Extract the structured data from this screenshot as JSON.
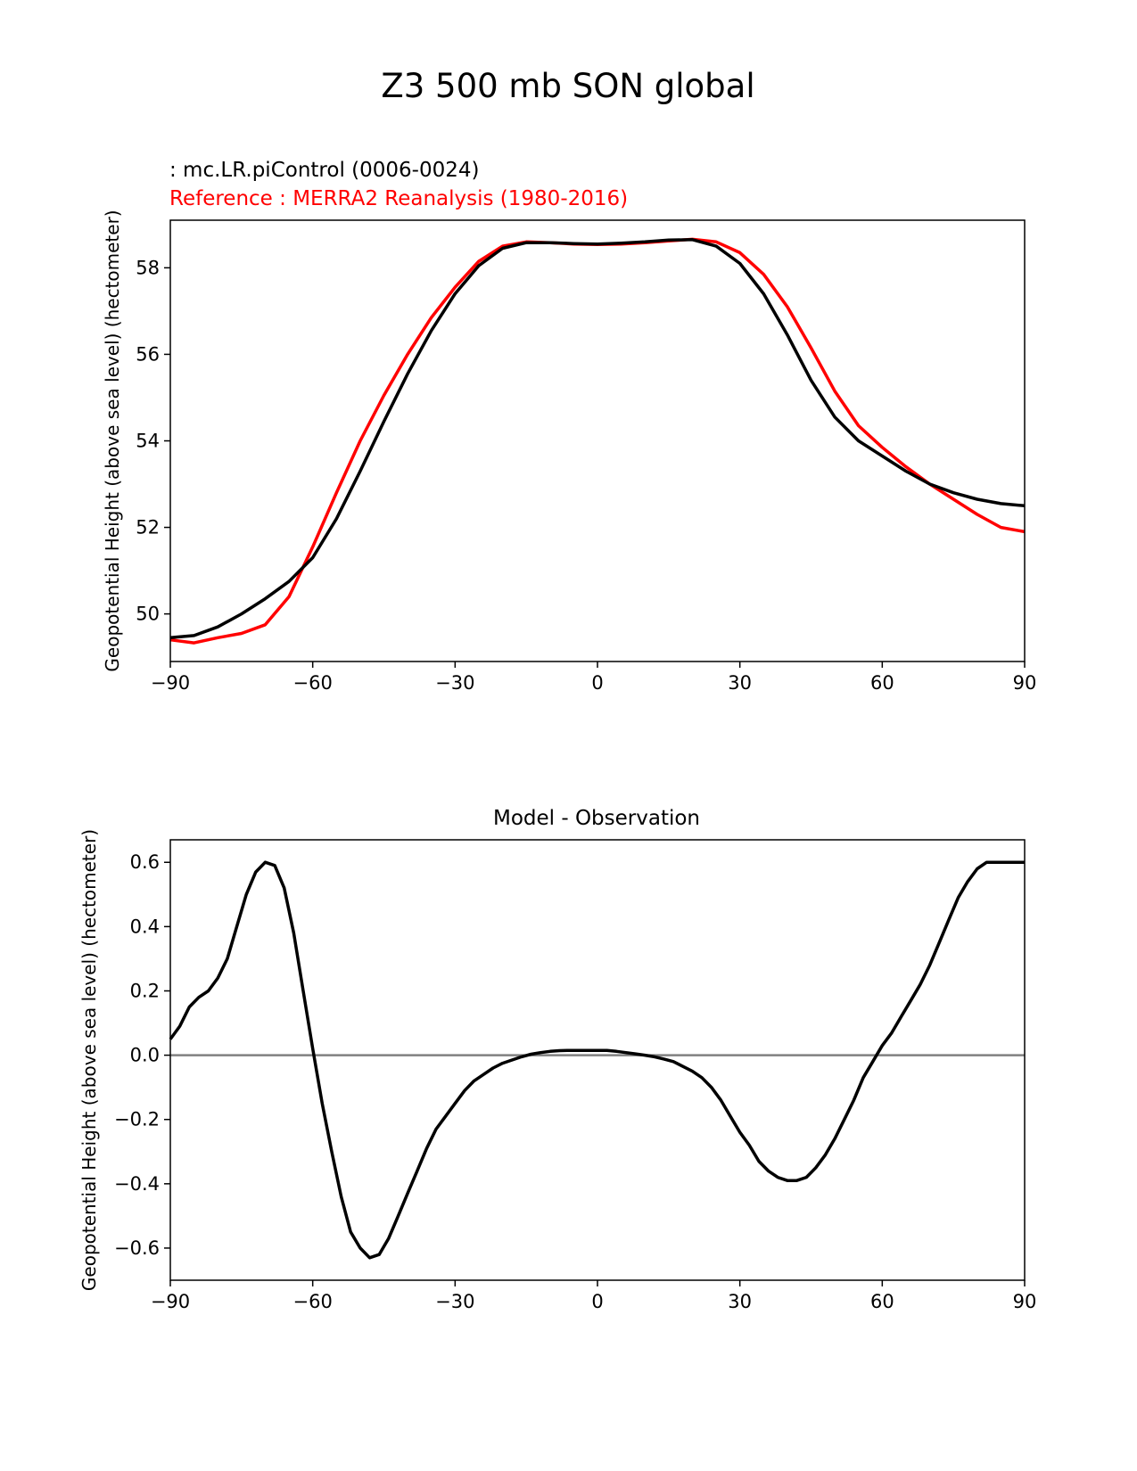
{
  "figure": {
    "title": "Z3 500 mb SON global"
  },
  "chart_data": [
    {
      "type": "line",
      "title": "",
      "legend_test": " : mc.LR.piControl (0006-0024)",
      "legend_ref": "Reference : MERRA2 Reanalysis (1980-2016)",
      "xlabel": "",
      "ylabel": "Geopotential Height (above sea level) (hectometer)",
      "xlim": [
        -90,
        90
      ],
      "ylim": [
        48.9,
        59.1
      ],
      "xticks": [
        -90,
        -60,
        -30,
        0,
        30,
        60,
        90
      ],
      "xtick_labels": [
        "−90",
        "−60",
        "−30",
        "0",
        "30",
        "60",
        "90"
      ],
      "yticks": [
        50,
        52,
        54,
        56,
        58
      ],
      "ytick_labels": [
        "50",
        "52",
        "54",
        "56",
        "58"
      ],
      "grid": false,
      "colors": {
        "test": "#000000",
        "reference": "#ff0000"
      },
      "series": [
        {
          "name": "mc.LR.piControl (0006-0024)",
          "color": "#000000",
          "x": [
            -90,
            -85,
            -80,
            -75,
            -70,
            -65,
            -60,
            -55,
            -50,
            -45,
            -40,
            -35,
            -30,
            -25,
            -20,
            -15,
            -10,
            -5,
            0,
            5,
            10,
            15,
            20,
            25,
            30,
            35,
            40,
            45,
            50,
            55,
            60,
            65,
            70,
            75,
            80,
            85,
            90
          ],
          "y": [
            49.45,
            49.5,
            49.7,
            50.0,
            50.35,
            50.75,
            51.3,
            52.2,
            53.3,
            54.45,
            55.55,
            56.55,
            57.4,
            58.05,
            58.45,
            58.58,
            58.58,
            58.56,
            58.55,
            58.57,
            58.6,
            58.64,
            58.65,
            58.5,
            58.1,
            57.4,
            56.45,
            55.4,
            54.55,
            54.0,
            53.65,
            53.3,
            53.0,
            52.8,
            52.65,
            52.55,
            52.5
          ]
        },
        {
          "name": "MERRA2 Reanalysis (1980-2016)",
          "color": "#ff0000",
          "x": [
            -90,
            -85,
            -80,
            -75,
            -70,
            -65,
            -60,
            -55,
            -50,
            -45,
            -40,
            -35,
            -30,
            -25,
            -20,
            -15,
            -10,
            -5,
            0,
            5,
            10,
            15,
            20,
            25,
            30,
            35,
            40,
            45,
            50,
            55,
            60,
            65,
            70,
            75,
            80,
            85,
            90
          ],
          "y": [
            49.4,
            49.33,
            49.45,
            49.55,
            49.75,
            50.4,
            51.55,
            52.8,
            54.0,
            55.05,
            56.0,
            56.85,
            57.55,
            58.15,
            58.5,
            58.6,
            58.58,
            58.55,
            58.54,
            58.55,
            58.58,
            58.62,
            58.66,
            58.6,
            58.35,
            57.85,
            57.1,
            56.15,
            55.15,
            54.35,
            53.85,
            53.4,
            53.0,
            52.65,
            52.3,
            52.0,
            51.9
          ]
        }
      ]
    },
    {
      "type": "line",
      "title": "Model - Observation",
      "xlabel": "",
      "ylabel": "Geopotential Height (above sea level) (hectometer)",
      "xlim": [
        -90,
        90
      ],
      "ylim": [
        -0.7,
        0.67
      ],
      "xticks": [
        -90,
        -60,
        -30,
        0,
        30,
        60,
        90
      ],
      "xtick_labels": [
        "−90",
        "−60",
        "−30",
        "0",
        "30",
        "60",
        "90"
      ],
      "yticks": [
        -0.6,
        -0.4,
        -0.2,
        0.0,
        0.2,
        0.4,
        0.6
      ],
      "ytick_labels": [
        "−0.6",
        "−0.4",
        "−0.2",
        "0.0",
        "0.2",
        "0.4",
        "0.6"
      ],
      "grid": false,
      "zero_line_color": "#808080",
      "series": [
        {
          "color": "#000000",
          "x": [
            -90,
            -88,
            -86,
            -84,
            -82,
            -80,
            -78,
            -76,
            -74,
            -72,
            -70,
            -68,
            -66,
            -64,
            -62,
            -60,
            -58,
            -56,
            -54,
            -52,
            -50,
            -48,
            -46,
            -44,
            -42,
            -40,
            -38,
            -36,
            -34,
            -32,
            -30,
            -28,
            -26,
            -24,
            -22,
            -20,
            -18,
            -16,
            -14,
            -12,
            -10,
            -8,
            -6,
            -4,
            -2,
            0,
            2,
            4,
            6,
            8,
            10,
            12,
            14,
            16,
            18,
            20,
            22,
            24,
            26,
            28,
            30,
            32,
            34,
            36,
            38,
            40,
            42,
            44,
            46,
            48,
            50,
            52,
            54,
            56,
            58,
            60,
            62,
            64,
            66,
            68,
            70,
            72,
            74,
            76,
            78,
            80,
            82,
            84,
            86,
            88,
            90
          ],
          "y": [
            0.05,
            0.09,
            0.15,
            0.18,
            0.2,
            0.24,
            0.3,
            0.4,
            0.5,
            0.57,
            0.6,
            0.59,
            0.52,
            0.38,
            0.2,
            0.02,
            -0.15,
            -0.3,
            -0.44,
            -0.55,
            -0.6,
            -0.63,
            -0.62,
            -0.57,
            -0.5,
            -0.43,
            -0.36,
            -0.29,
            -0.23,
            -0.19,
            -0.15,
            -0.11,
            -0.08,
            -0.06,
            -0.04,
            -0.025,
            -0.015,
            -0.005,
            0.003,
            0.008,
            0.012,
            0.014,
            0.015,
            0.015,
            0.015,
            0.015,
            0.015,
            0.012,
            0.008,
            0.004,
            0.0,
            -0.005,
            -0.012,
            -0.02,
            -0.035,
            -0.05,
            -0.07,
            -0.1,
            -0.14,
            -0.19,
            -0.24,
            -0.28,
            -0.33,
            -0.36,
            -0.38,
            -0.39,
            -0.39,
            -0.38,
            -0.35,
            -0.31,
            -0.26,
            -0.2,
            -0.14,
            -0.07,
            -0.02,
            0.03,
            0.07,
            0.12,
            0.17,
            0.22,
            0.28,
            0.35,
            0.42,
            0.49,
            0.54,
            0.58,
            0.6,
            0.6,
            0.6,
            0.6,
            0.6
          ]
        }
      ]
    }
  ]
}
